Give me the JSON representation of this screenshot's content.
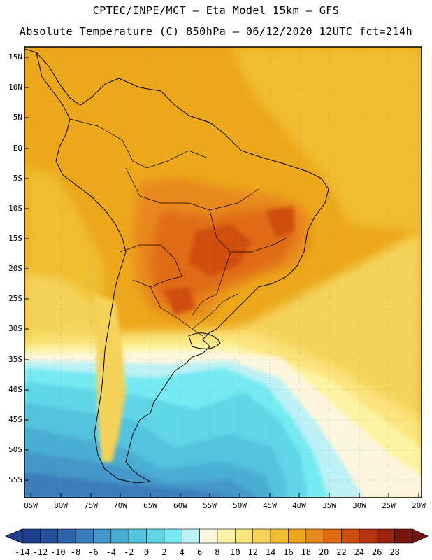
{
  "title_line1": "CPTEC/INPE/MCT –  Eta Model 15km – GFS",
  "title_line2": "Absolute Temperature (C) 850hPa – 06/12/2020 12UTC fct=214h",
  "lat_labels": [
    "15N",
    "10N",
    "5N",
    "EQ",
    "5S",
    "10S",
    "15S",
    "20S",
    "25S",
    "30S",
    "35S",
    "40S",
    "45S",
    "50S",
    "55S"
  ],
  "lon_labels": [
    "85W",
    "80W",
    "75W",
    "70W",
    "65W",
    "60W",
    "55W",
    "50W",
    "45W",
    "40W",
    "35W",
    "30W",
    "25W",
    "20W"
  ],
  "colorbar": {
    "labels": [
      "-14",
      "-12",
      "-10",
      "-8",
      "-6",
      "-4",
      "-2",
      "0",
      "2",
      "4",
      "6",
      "8",
      "10",
      "12",
      "14",
      "16",
      "18",
      "20",
      "22",
      "24",
      "26",
      "28"
    ],
    "colors": [
      "#1f3f8f",
      "#26509c",
      "#2e64ad",
      "#3a7cbd",
      "#4596c9",
      "#4aaed3",
      "#52c3de",
      "#5fd6e8",
      "#75eaf2",
      "#bdf1f5",
      "#fdf6dc",
      "#fdf3a3",
      "#fbe57e",
      "#f5d35a",
      "#f0be33",
      "#eda71a",
      "#e8891e",
      "#e06a14",
      "#d04d10",
      "#b73410",
      "#98230f",
      "#741510"
    ]
  }
}
